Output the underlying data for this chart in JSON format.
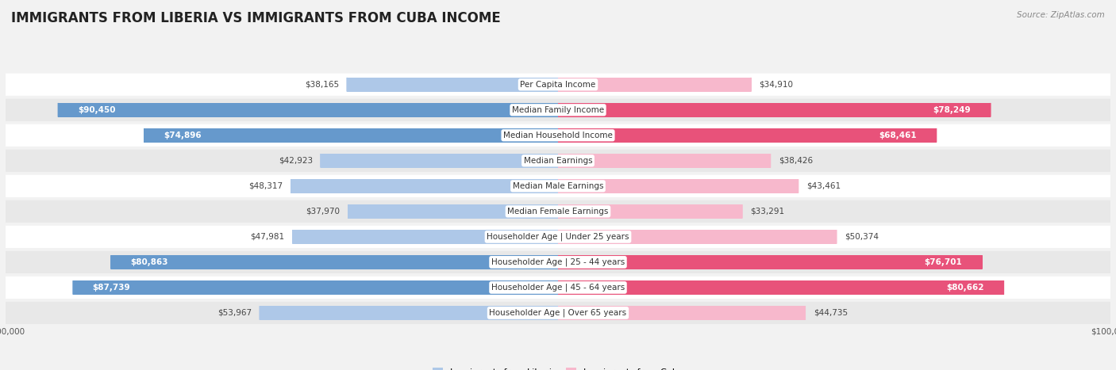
{
  "title": "IMMIGRANTS FROM LIBERIA VS IMMIGRANTS FROM CUBA INCOME",
  "source": "Source: ZipAtlas.com",
  "categories": [
    "Per Capita Income",
    "Median Family Income",
    "Median Household Income",
    "Median Earnings",
    "Median Male Earnings",
    "Median Female Earnings",
    "Householder Age | Under 25 years",
    "Householder Age | 25 - 44 years",
    "Householder Age | 45 - 64 years",
    "Householder Age | Over 65 years"
  ],
  "liberia_values": [
    38165,
    90450,
    74896,
    42923,
    48317,
    37970,
    47981,
    80863,
    87739,
    53967
  ],
  "cuba_values": [
    34910,
    78249,
    68461,
    38426,
    43461,
    33291,
    50374,
    76701,
    80662,
    44735
  ],
  "liberia_color_light": "#aec8e8",
  "liberia_color_dark": "#6699cc",
  "cuba_color_light": "#f7b8cc",
  "cuba_color_dark": "#e8527a",
  "max_value": 100000,
  "liberia_label": "Immigrants from Liberia",
  "cuba_label": "Immigrants from Cuba",
  "background_color": "#f2f2f2",
  "row_bg_odd": "#ffffff",
  "row_bg_even": "#e8e8e8",
  "title_fontsize": 12,
  "label_fontsize": 7.5,
  "value_fontsize_inside": 7.5,
  "value_fontsize_outside": 7.5,
  "axis_label_fontsize": 7.5,
  "inside_threshold": 55000,
  "legend_fontsize": 8
}
